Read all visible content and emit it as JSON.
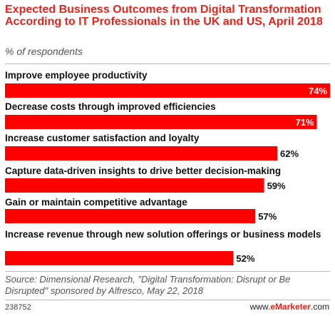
{
  "chart_data": {
    "type": "bar",
    "orientation": "horizontal",
    "title": "Expected Business Outcomes from Digital Transformation According to IT Professionals in the UK and US, April 2018",
    "subtitle": "% of respondents",
    "categories": [
      "Improve employee productivity",
      "Decrease costs through improved efficiencies",
      "Increase customer satisfaction and loyalty",
      "Capture data-driven insights to drive better decision-making",
      "Gain or maintain competitive advantage",
      "Increase revenue through new solution offerings or business models"
    ],
    "values": [
      74,
      71,
      62,
      59,
      57,
      52
    ],
    "value_labels": [
      "74%",
      "71%",
      "62%",
      "59%",
      "57%",
      "52%"
    ],
    "xlim": [
      0,
      74
    ],
    "bar_color": "#ff0000",
    "grid": false,
    "legend": "none"
  },
  "source": "Source: Dimensional Research, \"Digital Transformation: Disrupt or Be Disrupted\" sponsored by Alfresco, May 22, 2018",
  "chart_id": "238752",
  "brand": {
    "prefix": "www.",
    "name": "eMarketer",
    "suffix": ".com"
  }
}
